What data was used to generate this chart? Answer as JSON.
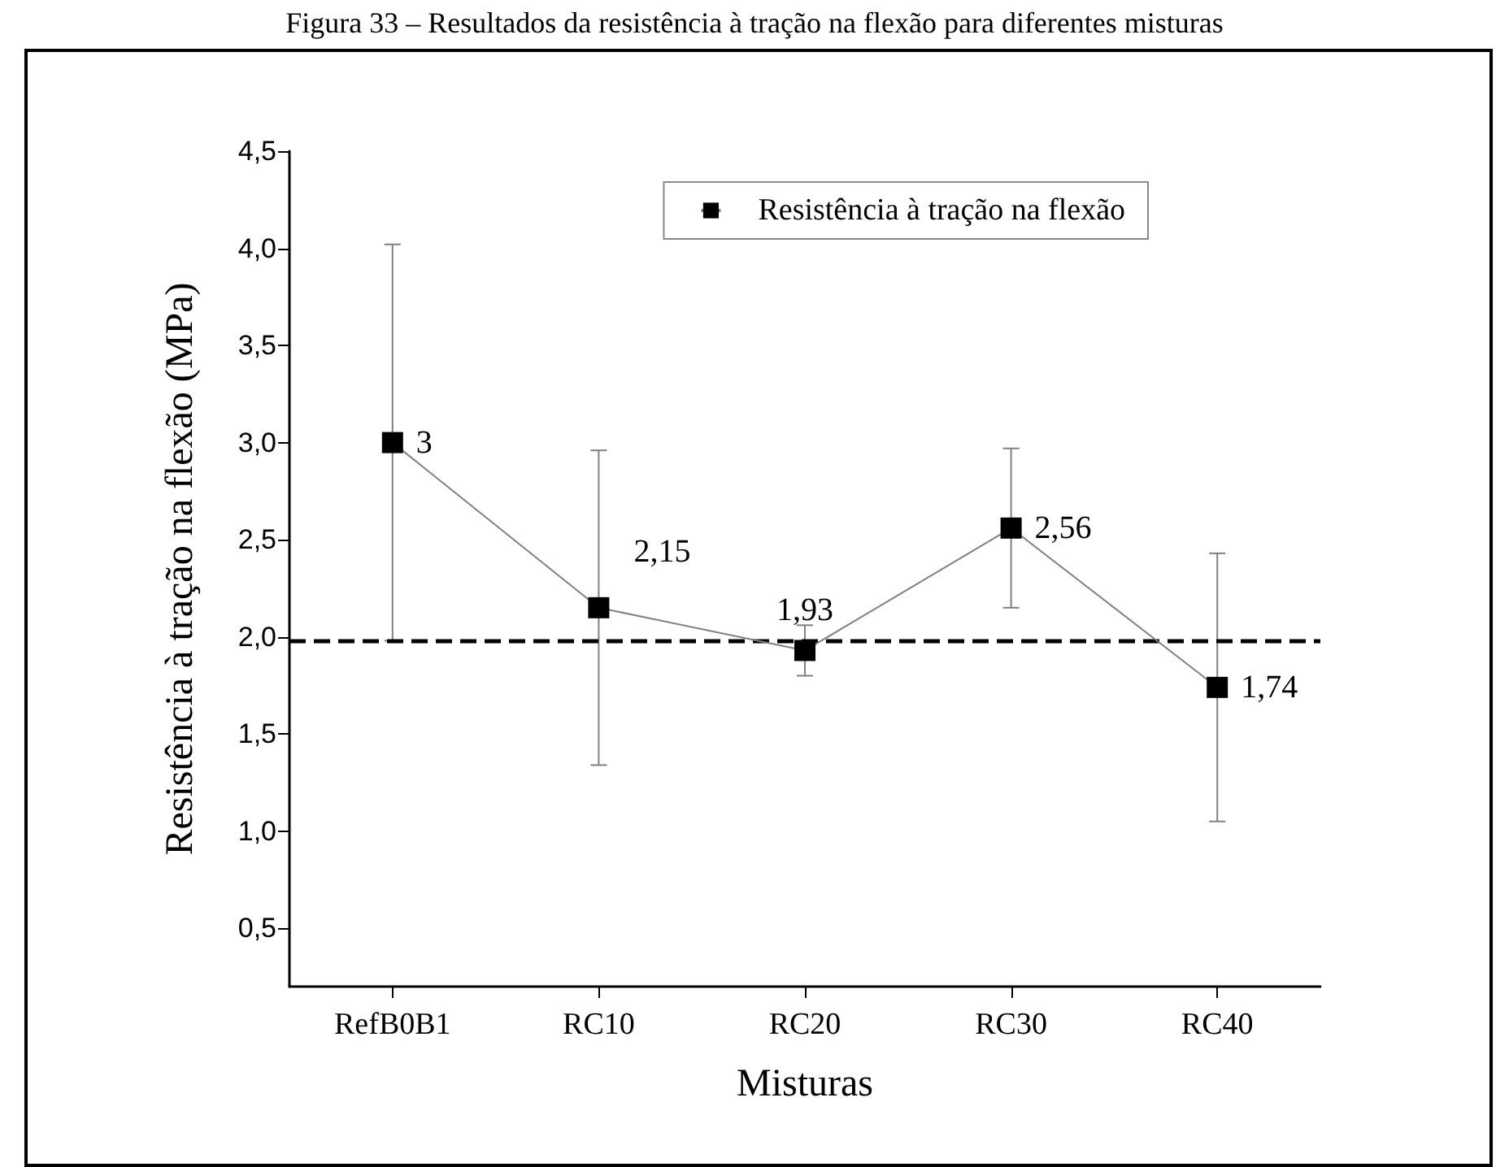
{
  "chart_data": {
    "type": "line",
    "title": "Figura 33 – Resultados da resistência à tração na flexão para diferentes misturas",
    "xlabel": "Misturas",
    "ylabel": "Resistência à tração na flexão (MPa)",
    "categories": [
      "RefB0B1",
      "RC10",
      "RC20",
      "RC30",
      "RC40"
    ],
    "series": [
      {
        "name": "Resistência à tração na flexão",
        "color": "#000000",
        "values": [
          3,
          2.15,
          1.93,
          2.56,
          1.74
        ],
        "errors": [
          1.02,
          0.81,
          0.13,
          0.41,
          0.69
        ],
        "value_labels": [
          "3",
          "2,15",
          "1,93",
          "2,56",
          "1,74"
        ]
      }
    ],
    "ylim": [
      0.2,
      4.5
    ],
    "yticks": [
      {
        "value": 0.5,
        "label": "0,5"
      },
      {
        "value": 1,
        "label": "1,0"
      },
      {
        "value": 1.5,
        "label": "1,5"
      },
      {
        "value": 2,
        "label": "2,0"
      },
      {
        "value": 2.5,
        "label": "2,5"
      },
      {
        "value": 3,
        "label": "3,0"
      },
      {
        "value": 3.5,
        "label": "3,5"
      },
      {
        "value": 4,
        "label": "4,0"
      },
      {
        "value": 4.5,
        "label": "4,5"
      }
    ],
    "ref_lines": [
      {
        "axis": "y",
        "value": 1.98,
        "color": "#000000",
        "line_style": "dashed"
      }
    ],
    "marker": "square",
    "line_style": "solid",
    "grid": false,
    "legend": "top right"
  }
}
